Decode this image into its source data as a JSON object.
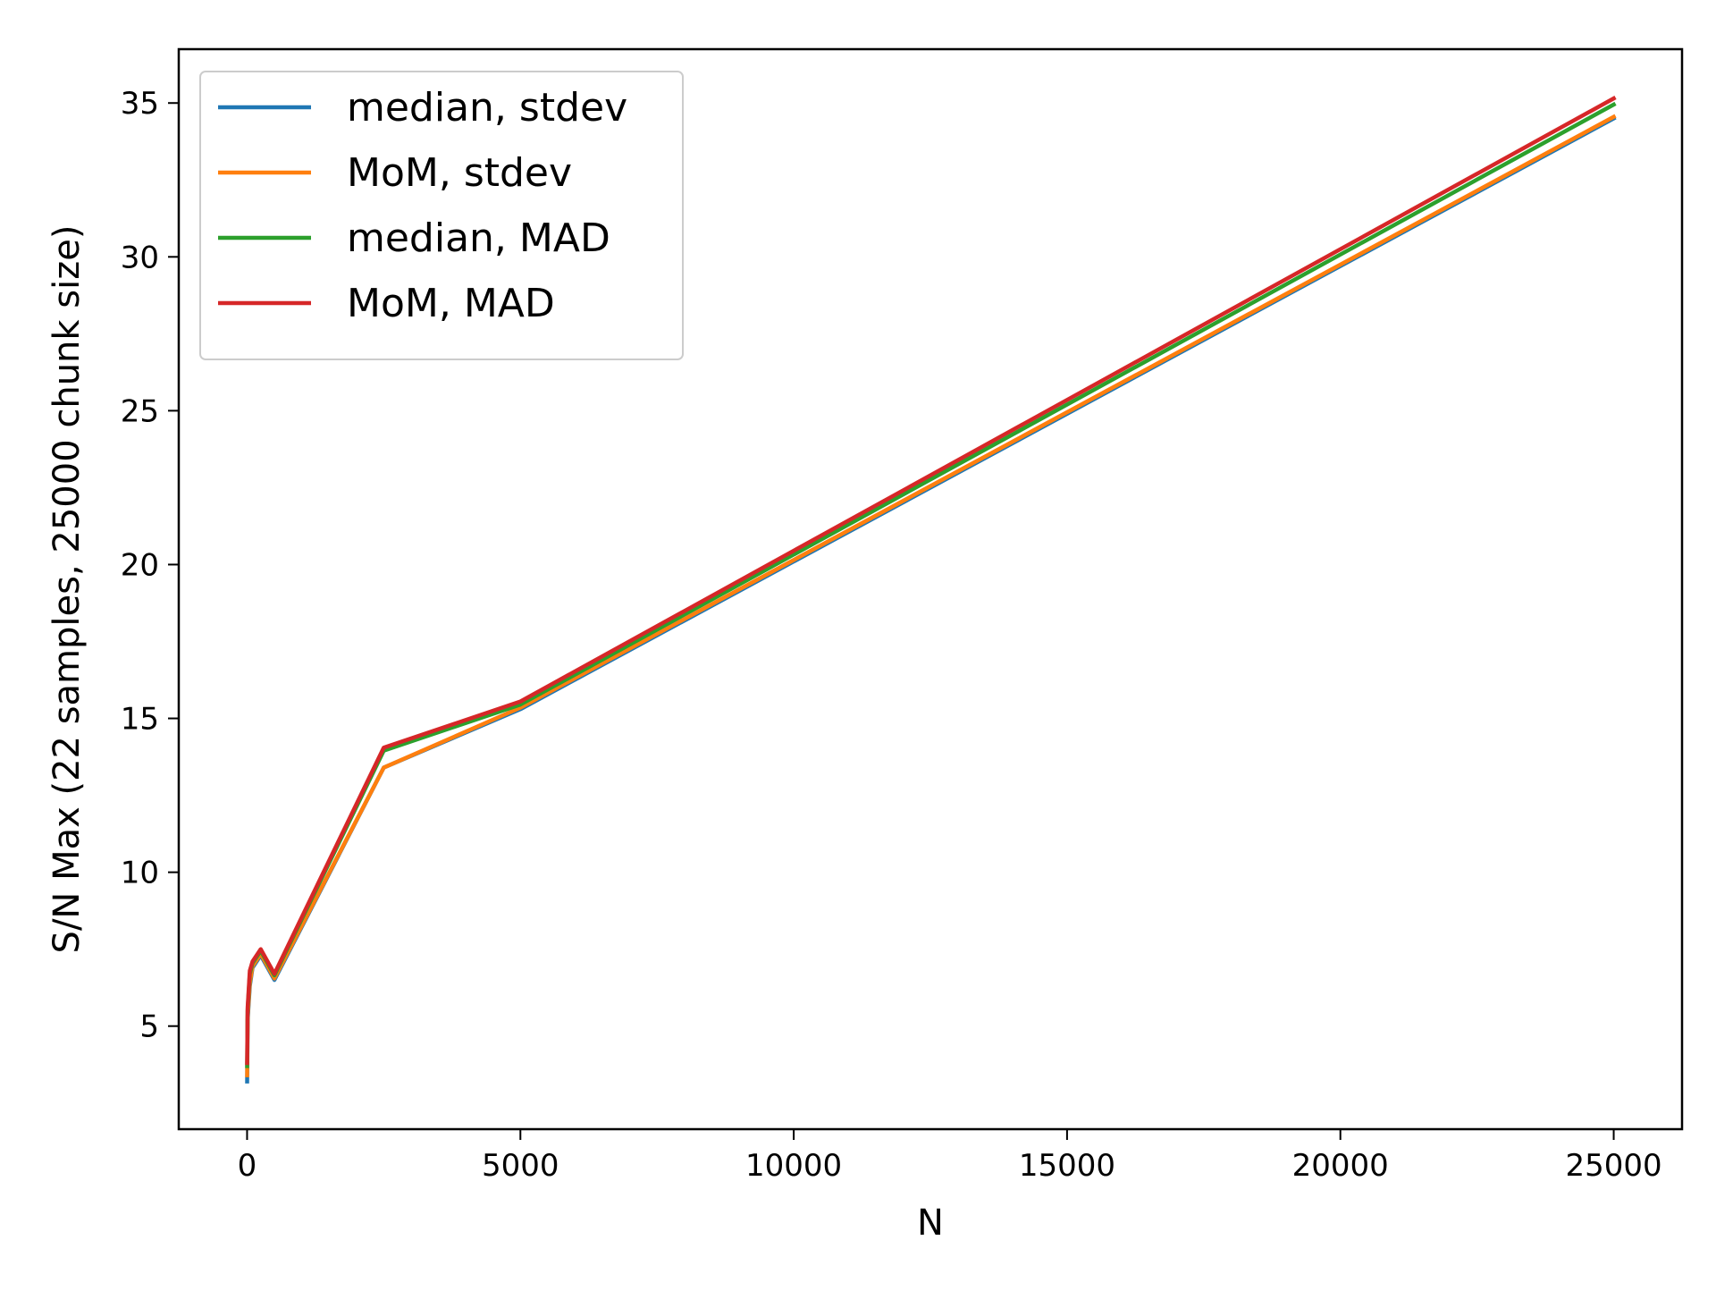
{
  "chart_data": {
    "type": "line",
    "title": "",
    "xlabel": "N",
    "ylabel": "S/N Max (22 samples, 25000 chunk size)",
    "xlim": [
      -1250,
      26250
    ],
    "ylim": [
      1.65,
      36.75
    ],
    "xticks": [
      0,
      5000,
      10000,
      15000,
      20000,
      25000
    ],
    "yticks": [
      5,
      10,
      15,
      20,
      25,
      30,
      35
    ],
    "grid": false,
    "legend_position": "top-left",
    "x": [
      1,
      5,
      10,
      50,
      100,
      250,
      500,
      2500,
      5000,
      25000
    ],
    "series": [
      {
        "name": "median, stdev",
        "color": "#1f77b4",
        "values": [
          3.2,
          4.0,
          5.2,
          6.3,
          6.9,
          7.3,
          6.5,
          13.4,
          15.3,
          34.5
        ]
      },
      {
        "name": "MoM, stdev",
        "color": "#ff7f0e",
        "values": [
          3.4,
          4.1,
          5.3,
          6.4,
          6.95,
          7.35,
          6.55,
          13.4,
          15.35,
          34.55
        ]
      },
      {
        "name": "median, MAD",
        "color": "#2ca02c",
        "values": [
          3.7,
          4.5,
          5.5,
          6.7,
          7.05,
          7.45,
          6.65,
          13.95,
          15.45,
          34.95
        ]
      },
      {
        "name": "MoM, MAD",
        "color": "#d62728",
        "values": [
          3.8,
          4.6,
          5.6,
          6.8,
          7.1,
          7.5,
          6.7,
          14.05,
          15.55,
          35.15
        ]
      }
    ]
  }
}
